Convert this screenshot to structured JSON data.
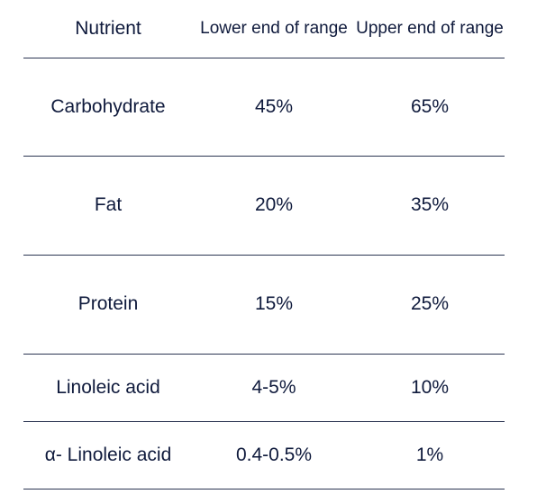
{
  "table": {
    "headers": [
      "Nutrient",
      "Lower end of range",
      "Upper end of range"
    ],
    "rows": [
      {
        "nutrient": "Carbohydrate",
        "lower": "45%",
        "upper": "65%"
      },
      {
        "nutrient": "Fat",
        "lower": "20%",
        "upper": "35%"
      },
      {
        "nutrient": "Protein",
        "lower": "15%",
        "upper": "25%"
      },
      {
        "nutrient": "Linoleic acid",
        "lower": "4-5%",
        "upper": "10%"
      },
      {
        "nutrient": "α- Linoleic acid",
        "lower": "0.4-0.5%",
        "upper": "1%"
      }
    ]
  },
  "colors": {
    "text": "#0f1a3c",
    "rule": "#2b3552",
    "background": "#ffffff"
  }
}
